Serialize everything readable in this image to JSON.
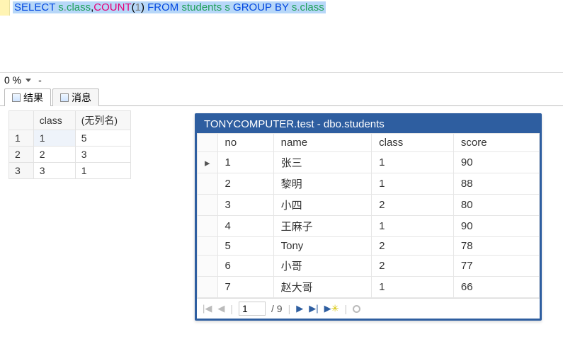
{
  "editor": {
    "sql_tokens": [
      {
        "t": "SELECT",
        "c": "kw"
      },
      {
        "t": " "
      },
      {
        "t": "s",
        "c": "ident"
      },
      {
        "t": ".",
        "c": "dot"
      },
      {
        "t": "class",
        "c": "ident"
      },
      {
        "t": ","
      },
      {
        "t": "COUNT",
        "c": "fn"
      },
      {
        "t": "("
      },
      {
        "t": "1",
        "c": "num"
      },
      {
        "t": ")"
      },
      {
        "t": "  "
      },
      {
        "t": "FROM",
        "c": "kw"
      },
      {
        "t": " "
      },
      {
        "t": "students",
        "c": "ident"
      },
      {
        "t": " "
      },
      {
        "t": "s",
        "c": "ident"
      },
      {
        "t": " "
      },
      {
        "t": "GROUP",
        "c": "kw"
      },
      {
        "t": " "
      },
      {
        "t": "BY",
        "c": "kw"
      },
      {
        "t": " "
      },
      {
        "t": "s",
        "c": "ident"
      },
      {
        "t": ".",
        "c": "dot"
      },
      {
        "t": "class",
        "c": "ident"
      }
    ]
  },
  "zoom": {
    "value": "0 %",
    "dash": "-"
  },
  "tabs": {
    "results": "结果",
    "messages": "消息"
  },
  "left_table": {
    "columns": [
      "class",
      "(无列名)"
    ],
    "rows": [
      {
        "n": "1",
        "class": "1",
        "cnt": "5",
        "selected": true
      },
      {
        "n": "2",
        "class": "2",
        "cnt": "3",
        "selected": false
      },
      {
        "n": "3",
        "class": "3",
        "cnt": "1",
        "selected": false
      }
    ]
  },
  "data_window": {
    "title": "TONYCOMPUTER.test - dbo.students",
    "columns": [
      "no",
      "name",
      "class",
      "score"
    ],
    "rows": [
      {
        "ptr": "▸",
        "no": "1",
        "name": "张三",
        "class": "1",
        "score": "90"
      },
      {
        "ptr": "",
        "no": "2",
        "name": "黎明",
        "class": "1",
        "score": "88"
      },
      {
        "ptr": "",
        "no": "3",
        "name": "小四",
        "class": "2",
        "score": "80"
      },
      {
        "ptr": "",
        "no": "4",
        "name": "王麻子",
        "class": "1",
        "score": "90"
      },
      {
        "ptr": "",
        "no": "5",
        "name": "Tony",
        "class": "2",
        "score": "78"
      },
      {
        "ptr": "",
        "no": "6",
        "name": "小哥",
        "class": "2",
        "score": "77"
      },
      {
        "ptr": "",
        "no": "7",
        "name": "赵大哥",
        "class": "1",
        "score": "66"
      }
    ],
    "nav": {
      "page": "1",
      "total_prefix": "/ ",
      "total": "9"
    }
  }
}
